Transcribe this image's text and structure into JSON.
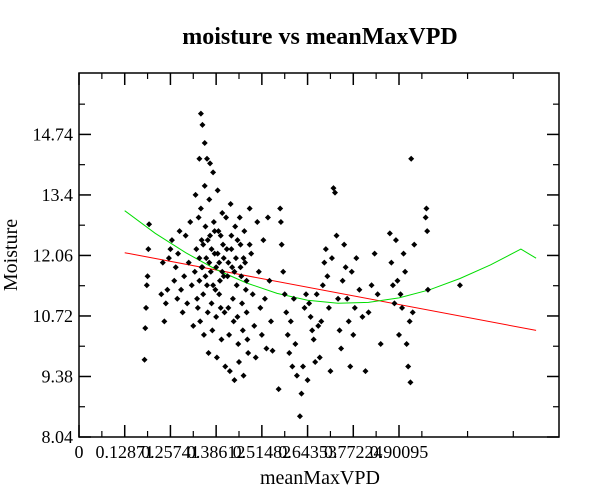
{
  "chart_data": {
    "type": "scatter",
    "title": "moisture vs meanMaxVPD",
    "xlabel": "meanMaxVPD",
    "ylabel": "Moisture",
    "xlim": [
      0,
      0.63
    ],
    "ylim": [
      8.04,
      16.1
    ],
    "x_ticks": [
      {
        "value": 0,
        "label": "0"
      },
      {
        "value": 0.06,
        "label": "0.12871"
      },
      {
        "value": 0.12,
        "label": "0.25741"
      },
      {
        "value": 0.18,
        "label": "0.38612"
      },
      {
        "value": 0.24,
        "label": "0.51482"
      },
      {
        "value": 0.3,
        "label": "0.64353"
      },
      {
        "value": 0.36,
        "label": "0.77224"
      },
      {
        "value": 0.42,
        "label": "0.90095"
      }
    ],
    "y_ticks": [
      {
        "value": 8.04,
        "label": "8.04"
      },
      {
        "value": 9.38,
        "label": "9.38"
      },
      {
        "value": 10.72,
        "label": "10.72"
      },
      {
        "value": 12.06,
        "label": "12.06"
      },
      {
        "value": 13.4,
        "label": "13.4"
      },
      {
        "value": 14.74,
        "label": "14.74"
      }
    ],
    "grid": false,
    "legend": "none",
    "series": [
      {
        "kind": "points",
        "color": "#000000",
        "points": [
          [
            0.086,
            9.75
          ],
          [
            0.087,
            10.45
          ],
          [
            0.088,
            10.9
          ],
          [
            0.089,
            11.4
          ],
          [
            0.09,
            11.6
          ],
          [
            0.091,
            12.2
          ],
          [
            0.092,
            12.75
          ],
          [
            0.108,
            11.2
          ],
          [
            0.11,
            11.9
          ],
          [
            0.112,
            10.6
          ],
          [
            0.114,
            11.0
          ],
          [
            0.116,
            11.3
          ],
          [
            0.118,
            12.0
          ],
          [
            0.12,
            12.2
          ],
          [
            0.122,
            12.4
          ],
          [
            0.125,
            11.5
          ],
          [
            0.127,
            11.8
          ],
          [
            0.129,
            11.1
          ],
          [
            0.13,
            12.1
          ],
          [
            0.132,
            12.6
          ],
          [
            0.134,
            11.3
          ],
          [
            0.136,
            10.8
          ],
          [
            0.138,
            11.6
          ],
          [
            0.14,
            12.5
          ],
          [
            0.142,
            11.0
          ],
          [
            0.144,
            11.9
          ],
          [
            0.146,
            12.8
          ],
          [
            0.148,
            11.4
          ],
          [
            0.15,
            10.5
          ],
          [
            0.152,
            11.7
          ],
          [
            0.153,
            13.4
          ],
          [
            0.154,
            12.2
          ],
          [
            0.155,
            11.1
          ],
          [
            0.156,
            10.9
          ],
          [
            0.157,
            12.9
          ],
          [
            0.158,
            11.5
          ],
          [
            0.159,
            10.6
          ],
          [
            0.16,
            13.1
          ],
          [
            0.161,
            12.4
          ],
          [
            0.162,
            11.8
          ],
          [
            0.163,
            11.2
          ],
          [
            0.164,
            10.3
          ],
          [
            0.165,
            13.6
          ],
          [
            0.166,
            12.7
          ],
          [
            0.167,
            12.0
          ],
          [
            0.168,
            11.4
          ],
          [
            0.169,
            10.8
          ],
          [
            0.17,
            9.9
          ],
          [
            0.171,
            13.3
          ],
          [
            0.172,
            12.5
          ],
          [
            0.173,
            11.7
          ],
          [
            0.174,
            11.0
          ],
          [
            0.175,
            10.4
          ],
          [
            0.176,
            13.9
          ],
          [
            0.177,
            12.8
          ],
          [
            0.178,
            12.1
          ],
          [
            0.179,
            11.3
          ],
          [
            0.18,
            10.7
          ],
          [
            0.181,
            9.8
          ],
          [
            0.182,
            13.5
          ],
          [
            0.183,
            12.6
          ],
          [
            0.184,
            11.9
          ],
          [
            0.185,
            11.5
          ],
          [
            0.186,
            10.9
          ],
          [
            0.187,
            10.2
          ],
          [
            0.188,
            13.0
          ],
          [
            0.189,
            12.3
          ],
          [
            0.19,
            11.6
          ],
          [
            0.191,
            10.8
          ],
          [
            0.192,
            9.6
          ],
          [
            0.158,
            14.2
          ],
          [
            0.16,
            15.2
          ],
          [
            0.162,
            14.95
          ],
          [
            0.165,
            14.55
          ],
          [
            0.168,
            14.2
          ],
          [
            0.172,
            14.1
          ],
          [
            0.158,
            12.0
          ],
          [
            0.161,
            11.8
          ],
          [
            0.163,
            12.3
          ],
          [
            0.166,
            11.6
          ],
          [
            0.169,
            12.4
          ],
          [
            0.171,
            11.9
          ],
          [
            0.174,
            12.2
          ],
          [
            0.176,
            11.4
          ],
          [
            0.178,
            12.6
          ],
          [
            0.18,
            11.8
          ],
          [
            0.182,
            12.1
          ],
          [
            0.184,
            11.2
          ],
          [
            0.186,
            12.5
          ],
          [
            0.188,
            11.7
          ],
          [
            0.19,
            12.0
          ],
          [
            0.193,
            12.9
          ],
          [
            0.194,
            12.2
          ],
          [
            0.195,
            11.6
          ],
          [
            0.196,
            10.9
          ],
          [
            0.197,
            10.3
          ],
          [
            0.198,
            9.5
          ],
          [
            0.199,
            13.2
          ],
          [
            0.2,
            12.5
          ],
          [
            0.201,
            11.8
          ],
          [
            0.202,
            11.1
          ],
          [
            0.203,
            10.6
          ],
          [
            0.204,
            9.3
          ],
          [
            0.205,
            12.7
          ],
          [
            0.206,
            12.0
          ],
          [
            0.207,
            11.4
          ],
          [
            0.208,
            10.7
          ],
          [
            0.209,
            10.1
          ],
          [
            0.21,
            9.7
          ],
          [
            0.211,
            12.9
          ],
          [
            0.212,
            12.3
          ],
          [
            0.213,
            11.6
          ],
          [
            0.214,
            11.0
          ],
          [
            0.215,
            10.4
          ],
          [
            0.216,
            9.4
          ],
          [
            0.217,
            12.6
          ],
          [
            0.218,
            11.9
          ],
          [
            0.219,
            11.3
          ],
          [
            0.22,
            10.8
          ],
          [
            0.221,
            10.2
          ],
          [
            0.222,
            9.9
          ],
          [
            0.224,
            13.1
          ],
          [
            0.226,
            12.1
          ],
          [
            0.228,
            11.2
          ],
          [
            0.23,
            10.5
          ],
          [
            0.232,
            9.8
          ],
          [
            0.234,
            12.8
          ],
          [
            0.236,
            11.7
          ],
          [
            0.238,
            10.9
          ],
          [
            0.24,
            10.3
          ],
          [
            0.242,
            12.4
          ],
          [
            0.244,
            11.1
          ],
          [
            0.246,
            10.0
          ],
          [
            0.248,
            12.9
          ],
          [
            0.25,
            11.5
          ],
          [
            0.252,
            10.6
          ],
          [
            0.254,
            9.95
          ],
          [
            0.196,
            11.9
          ],
          [
            0.2,
            12.2
          ],
          [
            0.204,
            11.7
          ],
          [
            0.208,
            12.4
          ],
          [
            0.212,
            11.8
          ],
          [
            0.216,
            12.0
          ],
          [
            0.22,
            11.5
          ],
          [
            0.224,
            12.3
          ],
          [
            0.264,
            13.1
          ],
          [
            0.265,
            12.8
          ],
          [
            0.266,
            12.3
          ],
          [
            0.268,
            11.7
          ],
          [
            0.27,
            11.2
          ],
          [
            0.272,
            10.8
          ],
          [
            0.274,
            10.3
          ],
          [
            0.276,
            9.9
          ],
          [
            0.278,
            10.6
          ],
          [
            0.28,
            9.6
          ],
          [
            0.282,
            11.1
          ],
          [
            0.284,
            10.1
          ],
          [
            0.262,
            9.1
          ],
          [
            0.286,
            9.4
          ],
          [
            0.29,
            8.5
          ],
          [
            0.292,
            9.0
          ],
          [
            0.294,
            9.6
          ],
          [
            0.296,
            10.9
          ],
          [
            0.298,
            11.2
          ],
          [
            0.3,
            9.3
          ],
          [
            0.302,
            11.0
          ],
          [
            0.304,
            10.7
          ],
          [
            0.306,
            10.4
          ],
          [
            0.308,
            10.2
          ],
          [
            0.31,
            9.7
          ],
          [
            0.312,
            11.2
          ],
          [
            0.314,
            10.5
          ],
          [
            0.316,
            9.8
          ],
          [
            0.318,
            10.6
          ],
          [
            0.32,
            11.4
          ],
          [
            0.322,
            11.9
          ],
          [
            0.324,
            12.2
          ],
          [
            0.326,
            11.6
          ],
          [
            0.328,
            10.9
          ],
          [
            0.33,
            9.5
          ],
          [
            0.332,
            12.0
          ],
          [
            0.334,
            13.55
          ],
          [
            0.336,
            13.45
          ],
          [
            0.338,
            12.5
          ],
          [
            0.34,
            11.1
          ],
          [
            0.342,
            10.4
          ],
          [
            0.344,
            10.0
          ],
          [
            0.346,
            11.5
          ],
          [
            0.348,
            12.3
          ],
          [
            0.35,
            11.8
          ],
          [
            0.352,
            11.1
          ],
          [
            0.354,
            10.6
          ],
          [
            0.356,
            9.6
          ],
          [
            0.358,
            11.7
          ],
          [
            0.36,
            10.3
          ],
          [
            0.362,
            10.9
          ],
          [
            0.364,
            12.0
          ],
          [
            0.368,
            11.3
          ],
          [
            0.372,
            10.7
          ],
          [
            0.376,
            9.5
          ],
          [
            0.38,
            10.8
          ],
          [
            0.384,
            11.4
          ],
          [
            0.388,
            12.1
          ],
          [
            0.392,
            11.2
          ],
          [
            0.396,
            10.1
          ],
          [
            0.408,
            12.55
          ],
          [
            0.41,
            11.9
          ],
          [
            0.412,
            11.4
          ],
          [
            0.414,
            11.0
          ],
          [
            0.416,
            12.4
          ],
          [
            0.418,
            11.5
          ],
          [
            0.42,
            10.3
          ],
          [
            0.422,
            11.2
          ],
          [
            0.424,
            10.9
          ],
          [
            0.426,
            12.1
          ],
          [
            0.428,
            11.7
          ],
          [
            0.43,
            10.1
          ],
          [
            0.432,
            9.6
          ],
          [
            0.434,
            10.6
          ],
          [
            0.436,
            14.2
          ],
          [
            0.438,
            10.8
          ],
          [
            0.44,
            12.3
          ],
          [
            0.435,
            9.25
          ],
          [
            0.455,
            12.9
          ],
          [
            0.456,
            13.1
          ],
          [
            0.457,
            12.6
          ],
          [
            0.458,
            11.3
          ],
          [
            0.5,
            11.4
          ]
        ]
      },
      {
        "kind": "line",
        "name": "",
        "color": "#ff0000",
        "x": [
          0.06,
          0.6
        ],
        "y": [
          12.12,
          10.4
        ]
      },
      {
        "kind": "line",
        "name": "",
        "color": "#00dd00",
        "x": [
          0.06,
          0.1,
          0.14,
          0.18,
          0.22,
          0.26,
          0.3,
          0.34,
          0.38,
          0.42,
          0.46,
          0.5,
          0.54,
          0.58,
          0.6
        ],
        "y": [
          13.05,
          12.55,
          12.12,
          11.75,
          11.45,
          11.22,
          11.07,
          11.0,
          11.02,
          11.12,
          11.3,
          11.55,
          11.85,
          12.2,
          12.0
        ]
      }
    ]
  }
}
